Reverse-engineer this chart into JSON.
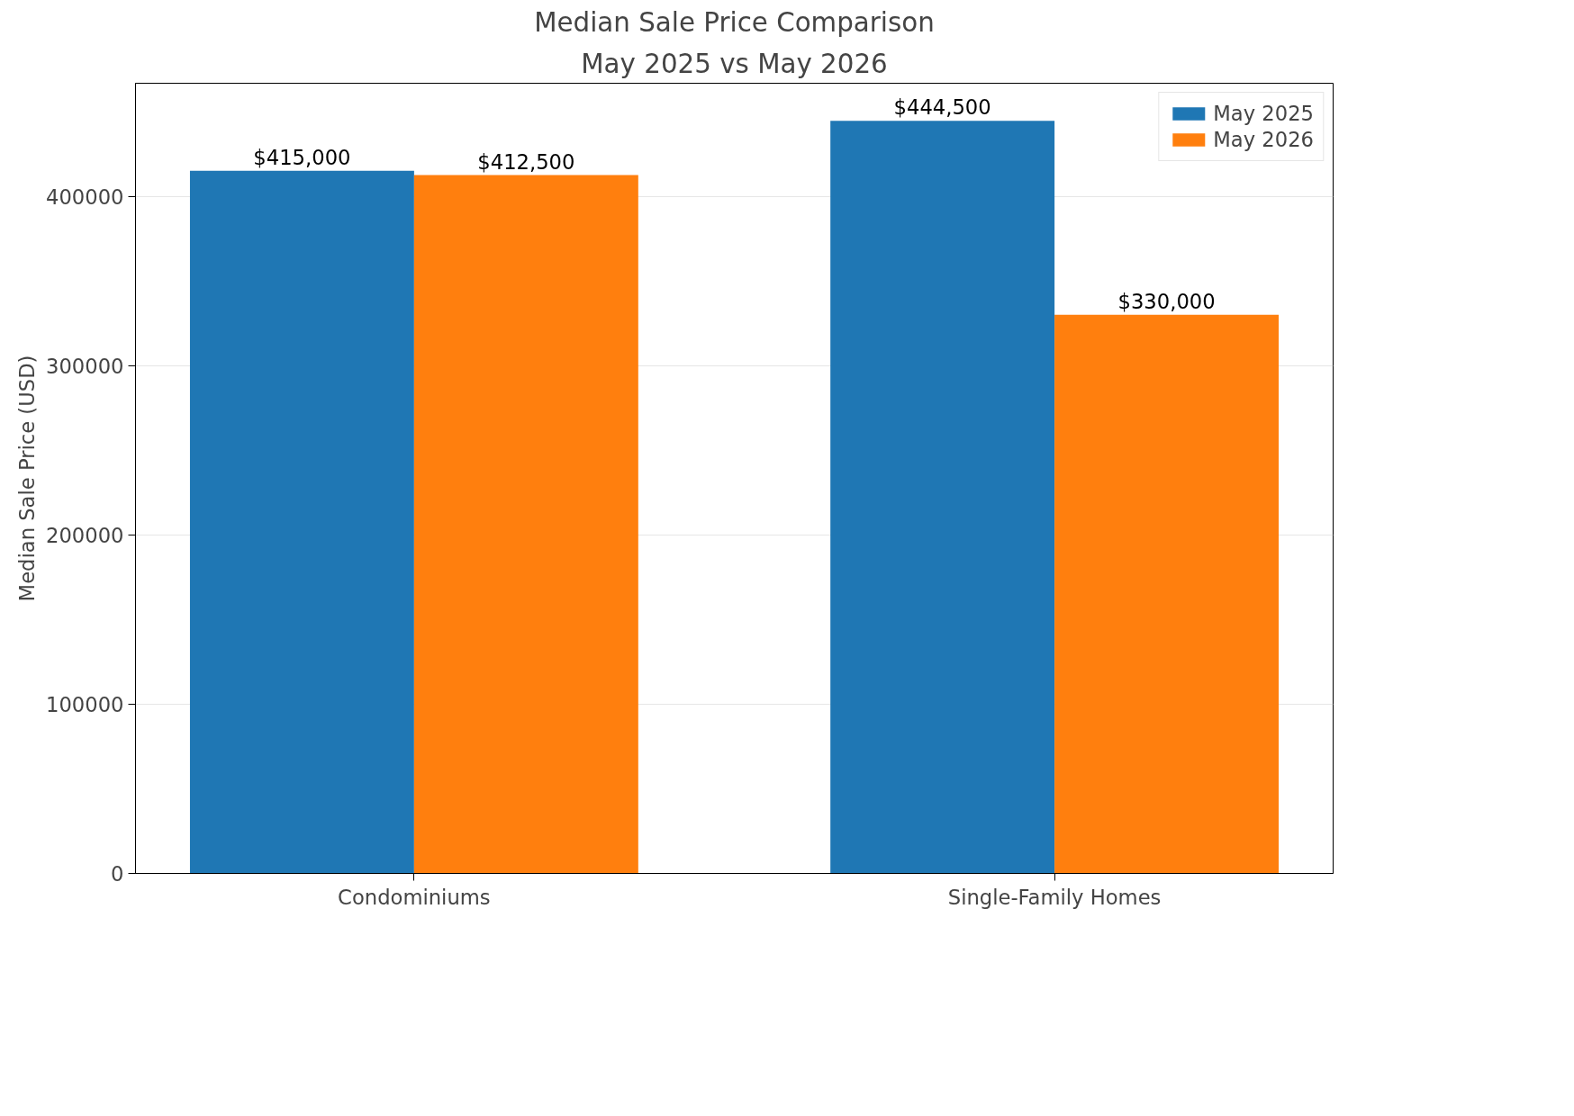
{
  "chart_data": {
    "type": "bar",
    "title": "Median Sale Price Comparison",
    "subtitle": "May 2025 vs May 2026",
    "ylabel": "Median Sale Price (USD)",
    "categories": [
      "Condominiums",
      "Single-Family Homes"
    ],
    "series": [
      {
        "name": "May 2025",
        "color": "#1f77b4",
        "values": [
          415000,
          444500
        ],
        "value_labels": [
          "$415,000",
          "$444,500"
        ]
      },
      {
        "name": "May 2026",
        "color": "#ff7f0e",
        "values": [
          412500,
          330000
        ],
        "value_labels": [
          "$412,500",
          "$330,000"
        ]
      }
    ],
    "ylim": [
      0,
      466725
    ],
    "yticks": [
      0,
      100000,
      200000,
      300000,
      400000
    ],
    "grid": "y",
    "legend": "top right"
  }
}
